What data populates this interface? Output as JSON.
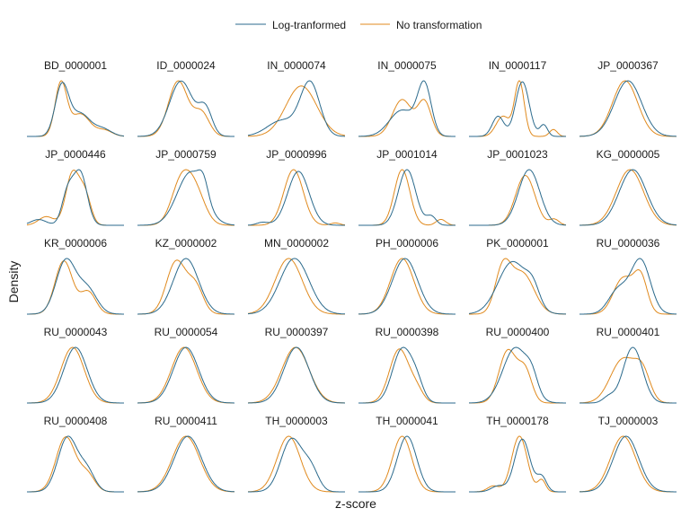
{
  "chart_data": {
    "type": "line",
    "subtype": "faceted density curves (6 columns x 5 rows)",
    "xlabel": "z-score",
    "ylabel": "Density",
    "legend": {
      "placement": "top-center",
      "entries": [
        {
          "name": "Log-tranformed",
          "color": "#2b6a8c"
        },
        {
          "name": "No transformation",
          "color": "#e08a1e"
        }
      ]
    },
    "axis_ticks_visible": false,
    "grid": false,
    "colors": {
      "log": "#2b6a8c",
      "raw": "#e08a1e"
    },
    "x_range_per_panel": [
      0,
      1
    ],
    "description_of_values": "Each curve is described by Gaussian components [mean, sd, weight] on a normalized 0-1 horizontal range per panel; estimated from curve shapes.",
    "panels": [
      {
        "label": "BD_0000001",
        "log": [
          [
            0.36,
            0.07,
            1.0
          ],
          [
            0.55,
            0.1,
            0.45
          ],
          [
            0.78,
            0.09,
            0.15
          ]
        ],
        "raw": [
          [
            0.35,
            0.06,
            1.05
          ],
          [
            0.55,
            0.1,
            0.45
          ],
          [
            0.8,
            0.08,
            0.12
          ]
        ]
      },
      {
        "label": "ID_0000024",
        "log": [
          [
            0.45,
            0.12,
            0.95
          ],
          [
            0.7,
            0.07,
            0.45
          ]
        ],
        "raw": [
          [
            0.42,
            0.1,
            0.95
          ],
          [
            0.66,
            0.08,
            0.4
          ]
        ]
      },
      {
        "label": "IN_0000074",
        "log": [
          [
            0.64,
            0.1,
            1.0
          ],
          [
            0.35,
            0.15,
            0.3
          ]
        ],
        "raw": [
          [
            0.55,
            0.16,
            0.95
          ]
        ]
      },
      {
        "label": "IN_0000075",
        "log": [
          [
            0.68,
            0.07,
            0.95
          ],
          [
            0.45,
            0.13,
            0.5
          ]
        ],
        "raw": [
          [
            0.45,
            0.1,
            0.7
          ],
          [
            0.68,
            0.07,
            0.65
          ]
        ]
      },
      {
        "label": "IN_0000117",
        "log": [
          [
            0.55,
            0.07,
            0.95
          ],
          [
            0.3,
            0.06,
            0.35
          ],
          [
            0.77,
            0.04,
            0.2
          ]
        ],
        "raw": [
          [
            0.52,
            0.05,
            0.95
          ],
          [
            0.35,
            0.07,
            0.35
          ],
          [
            0.87,
            0.04,
            0.12
          ]
        ]
      },
      {
        "label": "JP_0000367",
        "log": [
          [
            0.5,
            0.14,
            0.95
          ]
        ],
        "raw": [
          [
            0.47,
            0.13,
            0.95
          ]
        ]
      },
      {
        "label": "JP_0000446",
        "log": [
          [
            0.55,
            0.07,
            0.9
          ],
          [
            0.42,
            0.06,
            0.55
          ],
          [
            0.12,
            0.08,
            0.1
          ]
        ],
        "raw": [
          [
            0.47,
            0.07,
            0.9
          ],
          [
            0.6,
            0.06,
            0.5
          ],
          [
            0.2,
            0.08,
            0.15
          ]
        ]
      },
      {
        "label": "JP_0000759",
        "log": [
          [
            0.55,
            0.14,
            0.95
          ],
          [
            0.68,
            0.05,
            0.3
          ]
        ],
        "raw": [
          [
            0.45,
            0.1,
            0.75
          ],
          [
            0.6,
            0.1,
            0.55
          ]
        ]
      },
      {
        "label": "JP_0000996",
        "log": [
          [
            0.52,
            0.11,
            0.92
          ],
          [
            0.15,
            0.06,
            0.05
          ]
        ],
        "raw": [
          [
            0.47,
            0.1,
            0.95
          ],
          [
            0.9,
            0.05,
            0.04
          ]
        ]
      },
      {
        "label": "JP_0001014",
        "log": [
          [
            0.5,
            0.09,
            0.95
          ],
          [
            0.75,
            0.05,
            0.15
          ]
        ],
        "raw": [
          [
            0.45,
            0.08,
            0.95
          ],
          [
            0.85,
            0.05,
            0.1
          ]
        ]
      },
      {
        "label": "JP_0001023",
        "log": [
          [
            0.62,
            0.11,
            0.95
          ]
        ],
        "raw": [
          [
            0.58,
            0.1,
            0.85
          ],
          [
            0.88,
            0.05,
            0.1
          ]
        ]
      },
      {
        "label": "KG_0000005",
        "log": [
          [
            0.55,
            0.14,
            0.95
          ]
        ],
        "raw": [
          [
            0.52,
            0.14,
            0.95
          ]
        ]
      },
      {
        "label": "KR_0000006",
        "log": [
          [
            0.4,
            0.1,
            0.95
          ],
          [
            0.62,
            0.1,
            0.45
          ]
        ],
        "raw": [
          [
            0.38,
            0.09,
            0.95
          ],
          [
            0.63,
            0.08,
            0.4
          ]
        ]
      },
      {
        "label": "KZ_0000002",
        "log": [
          [
            0.5,
            0.13,
            0.95
          ]
        ],
        "raw": [
          [
            0.4,
            0.1,
            0.9
          ],
          [
            0.6,
            0.08,
            0.45
          ]
        ]
      },
      {
        "label": "MN_0000002",
        "log": [
          [
            0.48,
            0.15,
            0.95
          ]
        ],
        "raw": [
          [
            0.42,
            0.14,
            0.95
          ]
        ]
      },
      {
        "label": "PH_0000006",
        "log": [
          [
            0.48,
            0.13,
            0.95
          ]
        ],
        "raw": [
          [
            0.45,
            0.12,
            0.95
          ]
        ]
      },
      {
        "label": "PK_0000001",
        "log": [
          [
            0.45,
            0.15,
            0.9
          ],
          [
            0.66,
            0.07,
            0.3
          ]
        ],
        "raw": [
          [
            0.35,
            0.08,
            0.75
          ],
          [
            0.55,
            0.12,
            0.7
          ]
        ]
      },
      {
        "label": "RU_0000036",
        "log": [
          [
            0.63,
            0.1,
            0.9
          ],
          [
            0.4,
            0.1,
            0.4
          ]
        ],
        "raw": [
          [
            0.45,
            0.1,
            0.6
          ],
          [
            0.63,
            0.07,
            0.6
          ]
        ]
      },
      {
        "label": "RU_0000043",
        "log": [
          [
            0.5,
            0.12,
            0.95
          ]
        ],
        "raw": [
          [
            0.47,
            0.12,
            0.95
          ]
        ]
      },
      {
        "label": "RU_0000054",
        "log": [
          [
            0.5,
            0.13,
            0.95
          ]
        ],
        "raw": [
          [
            0.48,
            0.13,
            0.95
          ]
        ]
      },
      {
        "label": "RU_0000397",
        "log": [
          [
            0.5,
            0.13,
            0.95
          ]
        ],
        "raw": [
          [
            0.49,
            0.14,
            0.95
          ]
        ]
      },
      {
        "label": "RU_0000398",
        "log": [
          [
            0.45,
            0.1,
            0.95
          ],
          [
            0.6,
            0.07,
            0.3
          ]
        ],
        "raw": [
          [
            0.42,
            0.1,
            0.95
          ],
          [
            0.6,
            0.07,
            0.2
          ]
        ]
      },
      {
        "label": "RU_0000400",
        "log": [
          [
            0.48,
            0.13,
            0.9
          ],
          [
            0.65,
            0.06,
            0.25
          ]
        ],
        "raw": [
          [
            0.4,
            0.09,
            0.85
          ],
          [
            0.58,
            0.07,
            0.5
          ]
        ]
      },
      {
        "label": "RU_0000401",
        "log": [
          [
            0.55,
            0.1,
            0.95
          ],
          [
            0.3,
            0.06,
            0.1
          ]
        ],
        "raw": [
          [
            0.45,
            0.13,
            0.75
          ],
          [
            0.65,
            0.08,
            0.45
          ]
        ]
      },
      {
        "label": "RU_0000408",
        "log": [
          [
            0.42,
            0.1,
            0.95
          ],
          [
            0.62,
            0.08,
            0.35
          ]
        ],
        "raw": [
          [
            0.4,
            0.1,
            0.95
          ],
          [
            0.62,
            0.08,
            0.3
          ]
        ]
      },
      {
        "label": "RU_0000411",
        "log": [
          [
            0.52,
            0.14,
            0.95
          ]
        ],
        "raw": [
          [
            0.5,
            0.14,
            0.95
          ]
        ]
      },
      {
        "label": "TH_0000003",
        "log": [
          [
            0.45,
            0.11,
            0.9
          ],
          [
            0.65,
            0.08,
            0.35
          ]
        ],
        "raw": [
          [
            0.42,
            0.12,
            0.95
          ]
        ]
      },
      {
        "label": "TH_0000041",
        "log": [
          [
            0.5,
            0.1,
            0.95
          ]
        ],
        "raw": [
          [
            0.45,
            0.1,
            0.95
          ]
        ]
      },
      {
        "label": "TH_0000178",
        "log": [
          [
            0.55,
            0.08,
            0.9
          ],
          [
            0.75,
            0.05,
            0.25
          ],
          [
            0.3,
            0.07,
            0.1
          ]
        ],
        "raw": [
          [
            0.52,
            0.08,
            0.95
          ],
          [
            0.75,
            0.04,
            0.2
          ],
          [
            0.25,
            0.06,
            0.1
          ]
        ]
      },
      {
        "label": "TJ_0000003",
        "log": [
          [
            0.48,
            0.13,
            0.95
          ]
        ],
        "raw": [
          [
            0.45,
            0.13,
            0.95
          ]
        ]
      }
    ]
  }
}
